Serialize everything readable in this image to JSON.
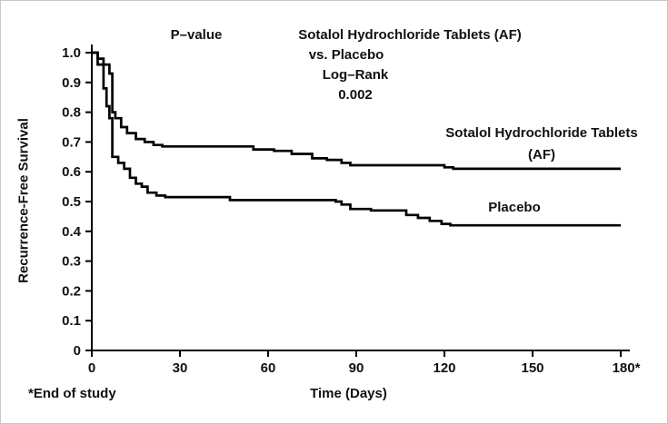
{
  "figure": {
    "ylabel": "Recurrence-Free Survival",
    "xlabel": "Time (Days)",
    "footnote": "*End of study"
  },
  "annotation": {
    "p_value_label": "P–value",
    "title_line1": "Sotalol Hydrochloride Tablets (AF)",
    "title_line2": "vs. Placebo",
    "title_line3": "Log–Rank",
    "title_line4": "0.002"
  },
  "curve_labels": {
    "sotalol_line1": "Sotalol Hydrochloride Tablets",
    "sotalol_line2": "(AF)",
    "placebo": "Placebo"
  },
  "chart_data": {
    "type": "line",
    "subtype": "kaplan-meier-step",
    "title": "Sotalol Hydrochloride Tablets (AF) vs. Placebo",
    "statistical_test": "Log–Rank",
    "p_value": 0.002,
    "xlabel": "Time (Days)",
    "ylabel": "Recurrence-Free Survival",
    "xlim": [
      0,
      180
    ],
    "ylim": [
      0,
      1.0
    ],
    "xticks": {
      "values": [
        0,
        30,
        60,
        90,
        120,
        150,
        180
      ],
      "labels": [
        "0",
        "30",
        "60",
        "90",
        "120",
        "150",
        "180*"
      ]
    },
    "yticks": {
      "values": [
        0,
        0.1,
        0.2,
        0.3,
        0.4,
        0.5,
        0.6,
        0.7,
        0.8,
        0.9,
        1.0
      ],
      "labels": [
        "0",
        "0.1",
        "0.2",
        "0.3",
        "0.4",
        "0.5",
        "0.6",
        "0.7",
        "0.8",
        "0.9",
        "1.0"
      ]
    },
    "grid": false,
    "legend_position": "inline-labels",
    "line_color": "#000000",
    "series": [
      {
        "name": "Sotalol Hydrochloride Tablets (AF)",
        "points": [
          [
            0,
            1.0
          ],
          [
            2,
            1.0
          ],
          [
            2,
            0.98
          ],
          [
            4,
            0.98
          ],
          [
            4,
            0.96
          ],
          [
            6,
            0.96
          ],
          [
            6,
            0.93
          ],
          [
            7,
            0.93
          ],
          [
            7,
            0.8
          ],
          [
            8,
            0.8
          ],
          [
            8,
            0.78
          ],
          [
            10,
            0.78
          ],
          [
            10,
            0.75
          ],
          [
            12,
            0.75
          ],
          [
            12,
            0.73
          ],
          [
            15,
            0.73
          ],
          [
            15,
            0.71
          ],
          [
            18,
            0.71
          ],
          [
            18,
            0.7
          ],
          [
            21,
            0.7
          ],
          [
            21,
            0.69
          ],
          [
            24,
            0.69
          ],
          [
            24,
            0.685
          ],
          [
            55,
            0.685
          ],
          [
            55,
            0.675
          ],
          [
            62,
            0.675
          ],
          [
            62,
            0.67
          ],
          [
            68,
            0.67
          ],
          [
            68,
            0.66
          ],
          [
            75,
            0.66
          ],
          [
            75,
            0.645
          ],
          [
            80,
            0.645
          ],
          [
            80,
            0.64
          ],
          [
            85,
            0.64
          ],
          [
            85,
            0.63
          ],
          [
            88,
            0.63
          ],
          [
            88,
            0.622
          ],
          [
            120,
            0.622
          ],
          [
            120,
            0.615
          ],
          [
            123,
            0.615
          ],
          [
            123,
            0.61
          ],
          [
            180,
            0.61
          ]
        ]
      },
      {
        "name": "Placebo",
        "points": [
          [
            0,
            1.0
          ],
          [
            2,
            1.0
          ],
          [
            2,
            0.96
          ],
          [
            4,
            0.96
          ],
          [
            4,
            0.88
          ],
          [
            5,
            0.88
          ],
          [
            5,
            0.82
          ],
          [
            6,
            0.82
          ],
          [
            6,
            0.78
          ],
          [
            7,
            0.78
          ],
          [
            7,
            0.65
          ],
          [
            9,
            0.65
          ],
          [
            9,
            0.63
          ],
          [
            11,
            0.63
          ],
          [
            11,
            0.61
          ],
          [
            13,
            0.61
          ],
          [
            13,
            0.58
          ],
          [
            15,
            0.58
          ],
          [
            15,
            0.56
          ],
          [
            17,
            0.56
          ],
          [
            17,
            0.55
          ],
          [
            19,
            0.55
          ],
          [
            19,
            0.53
          ],
          [
            22,
            0.53
          ],
          [
            22,
            0.52
          ],
          [
            25,
            0.52
          ],
          [
            25,
            0.515
          ],
          [
            47,
            0.515
          ],
          [
            47,
            0.505
          ],
          [
            83,
            0.505
          ],
          [
            83,
            0.5
          ],
          [
            85,
            0.5
          ],
          [
            85,
            0.49
          ],
          [
            88,
            0.49
          ],
          [
            88,
            0.475
          ],
          [
            95,
            0.475
          ],
          [
            95,
            0.47
          ],
          [
            107,
            0.47
          ],
          [
            107,
            0.455
          ],
          [
            111,
            0.455
          ],
          [
            111,
            0.445
          ],
          [
            115,
            0.445
          ],
          [
            115,
            0.435
          ],
          [
            119,
            0.435
          ],
          [
            119,
            0.425
          ],
          [
            122,
            0.425
          ],
          [
            122,
            0.42
          ],
          [
            180,
            0.42
          ]
        ]
      }
    ]
  }
}
